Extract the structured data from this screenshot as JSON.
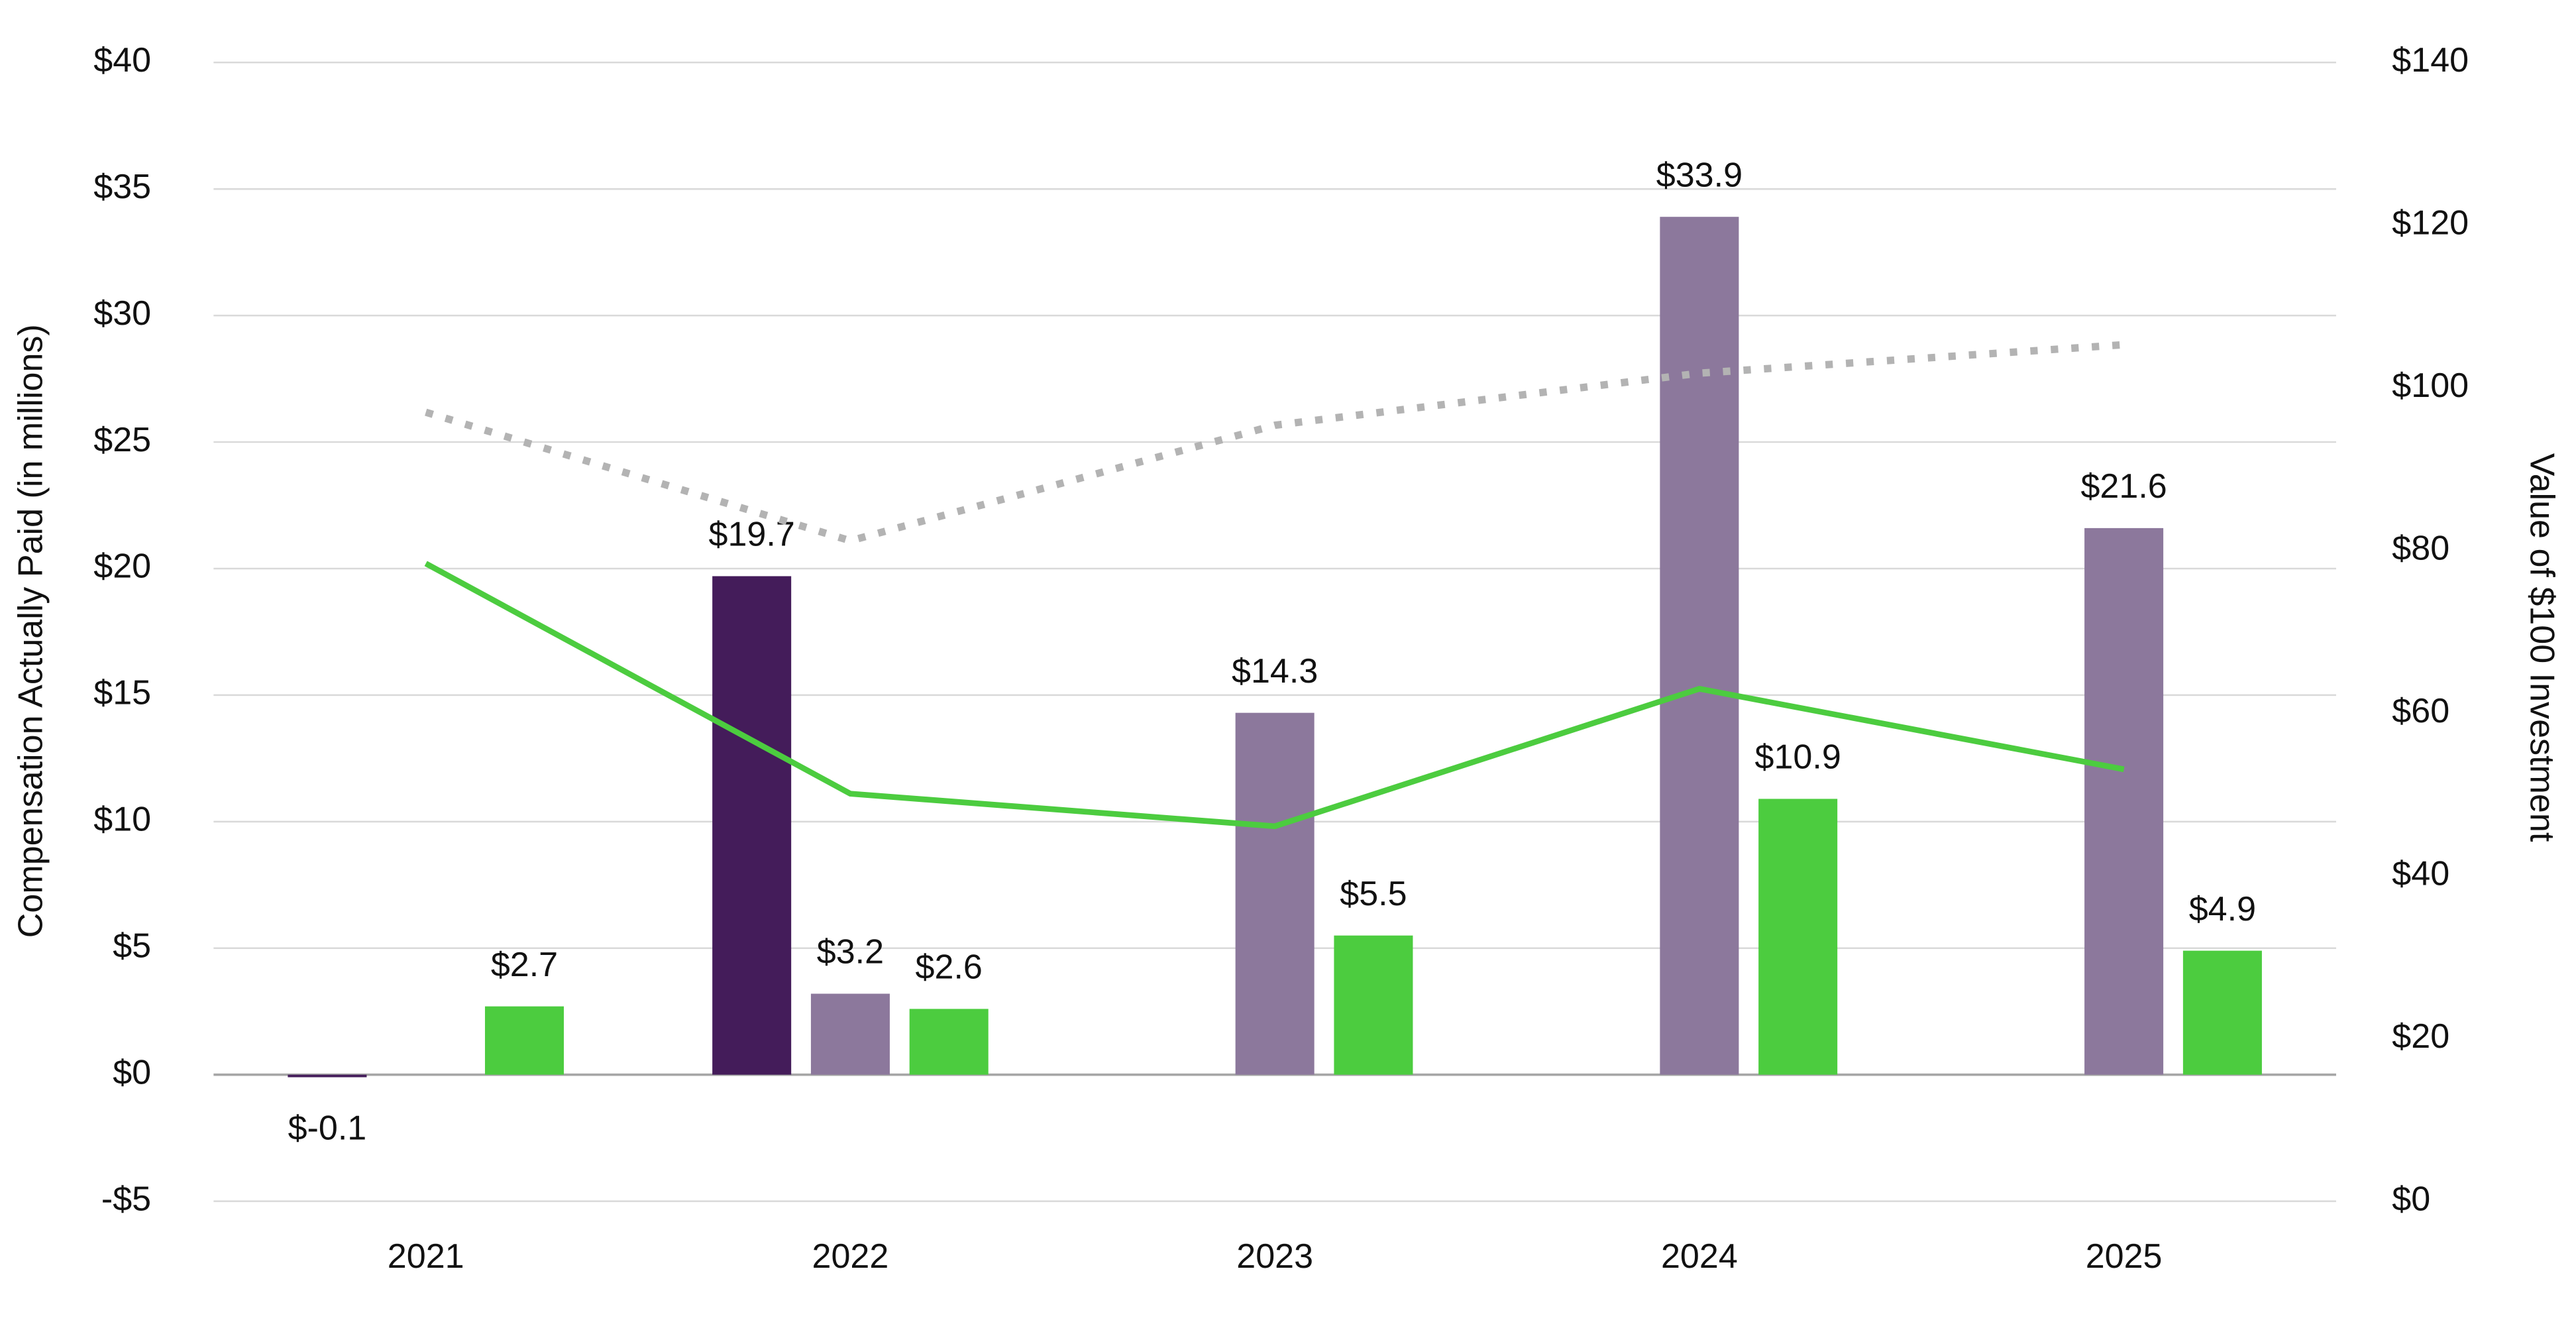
{
  "chart_data": {
    "type": "bar",
    "y_label": "Compensation Actually Paid (in millions)",
    "y2_label": "Value of $100 Investment",
    "categories": [
      "2021",
      "2022",
      "2023",
      "2024",
      "2025"
    ],
    "ylim": [
      -5,
      40
    ],
    "yticks": [
      {
        "value": -5,
        "label": "-$5"
      },
      {
        "value": 0,
        "label": "$0"
      },
      {
        "value": 5,
        "label": "$5"
      },
      {
        "value": 10,
        "label": "$10"
      },
      {
        "value": 15,
        "label": "$15"
      },
      {
        "value": 20,
        "label": "$20"
      },
      {
        "value": 25,
        "label": "$25"
      },
      {
        "value": 30,
        "label": "$30"
      },
      {
        "value": 35,
        "label": "$35"
      },
      {
        "value": 40,
        "label": "$40"
      }
    ],
    "y2lim": [
      0,
      140
    ],
    "y2ticks": [
      {
        "value": 0,
        "label": "$0"
      },
      {
        "value": 20,
        "label": "$20"
      },
      {
        "value": 40,
        "label": "$40"
      },
      {
        "value": 60,
        "label": "$60"
      },
      {
        "value": 80,
        "label": "$80"
      },
      {
        "value": 100,
        "label": "$100"
      },
      {
        "value": 120,
        "label": "$120"
      },
      {
        "value": 140,
        "label": "$140"
      }
    ],
    "grid": true,
    "series": [
      {
        "type": "bar",
        "color": "#441c5a",
        "values": [
          -0.1,
          19.7,
          null,
          null,
          null
        ],
        "value_labels": [
          "$-0.1",
          "$19.7",
          null,
          null,
          null
        ]
      },
      {
        "type": "bar",
        "color": "#8c789c",
        "values": [
          null,
          3.2,
          14.3,
          33.9,
          21.6
        ],
        "value_labels": [
          null,
          "$3.2",
          "$14.3",
          "$33.9",
          "$21.6"
        ]
      },
      {
        "type": "bar",
        "color": "#4ccc3f",
        "values": [
          2.7,
          2.6,
          5.5,
          10.9,
          4.9
        ],
        "value_labels": [
          "$2.7",
          "$2.6",
          "$5.5",
          "$10.9",
          "$4.9"
        ]
      },
      {
        "type": "line",
        "axis": "y2",
        "color": "#4ccc3f",
        "line_style": "solid",
        "values": [
          78.4,
          50.1,
          46.1,
          63.0,
          53.1
        ]
      },
      {
        "type": "line",
        "axis": "y2",
        "color": "#b3b3b3",
        "line_style": "dotted",
        "values": [
          97.0,
          81.2,
          95.4,
          101.8,
          105.3
        ]
      }
    ]
  }
}
